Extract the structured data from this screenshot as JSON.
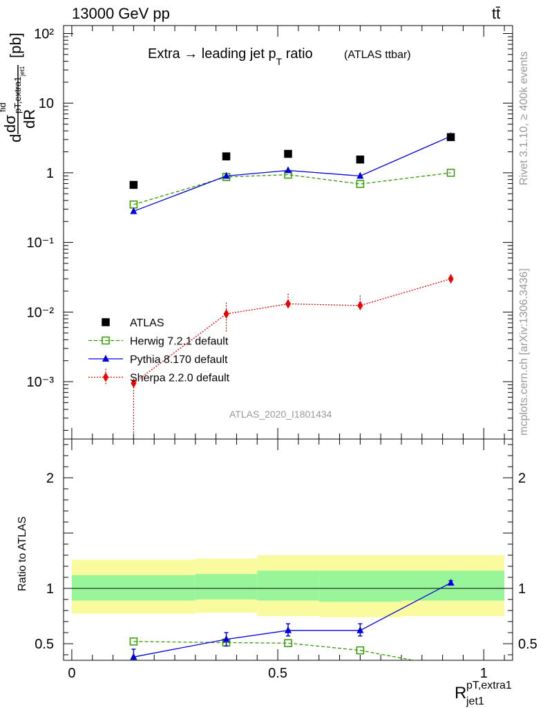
{
  "header": {
    "energy": "13000 GeV pp",
    "process": "tt̄"
  },
  "side_labels": {
    "rivet": "Rivet 3.1.10, ≥ 400k events",
    "mcplots": "mcplots.cern.ch [arXiv:1306.3436]"
  },
  "title": {
    "main": "Extra → leading jet p",
    "main_sub": "T",
    "main_tail": " ratio",
    "tag": "(ATLAS ttbar)"
  },
  "watermark": "ATLAS_2020_I1801434",
  "ylabel_top": {
    "d": "d",
    "dsig": "dσ",
    "fid": "fid",
    "sub": "pT,extra1",
    "subsub": "jet1",
    "dR": "dR",
    "unit": "[pb]"
  },
  "ylabel_bottom": "Ratio to ATLAS",
  "xlabel": {
    "R": "R",
    "sup": "pT,extra1",
    "sub": "jet1"
  },
  "colors": {
    "atlas": "#000000",
    "herwig": "#339900",
    "pythia": "#0000dd",
    "sherpa": "#ee0000",
    "band_inner": "#99f599",
    "band_outer": "#fafa9e"
  },
  "chart_data": [
    {
      "type": "scatter",
      "panel": "main",
      "scale": "log",
      "ylim": [
        0.00015,
        130
      ],
      "xlim": [
        -0.02,
        1.07
      ],
      "y_ticks": [
        "10²",
        "10",
        "1",
        "10⁻¹",
        "10⁻²",
        "10⁻³"
      ],
      "y_tick_values": [
        100,
        10,
        1,
        0.1,
        0.01,
        0.001
      ],
      "series": [
        {
          "name": "ATLAS",
          "x": [
            0.15,
            0.375,
            0.525,
            0.7,
            0.92
          ],
          "y": [
            0.67,
            1.72,
            1.87,
            1.55,
            3.25
          ]
        },
        {
          "name": "Herwig 7.2.1 default",
          "x": [
            0.15,
            0.375,
            0.525,
            0.7,
            0.92
          ],
          "y": [
            0.35,
            0.87,
            0.94,
            0.69,
            1.0
          ]
        },
        {
          "name": "Pythia 8.170 default",
          "x": [
            0.15,
            0.375,
            0.525,
            0.7,
            0.92
          ],
          "y": [
            0.28,
            0.9,
            1.08,
            0.9,
            3.35
          ]
        },
        {
          "name": "Sherpa 2.2.0 default",
          "x": [
            0.15,
            0.375,
            0.525,
            0.7,
            0.92
          ],
          "y": [
            0.00095,
            0.0094,
            0.0131,
            0.0124,
            0.03
          ],
          "err_lo": [
            0.00015,
            0.0052,
            0.0125,
            0.0114,
            0.027
          ],
          "err_hi": [
            0.0011,
            0.0137,
            0.0183,
            0.0173,
            0.035
          ]
        }
      ]
    },
    {
      "type": "line",
      "panel": "ratio",
      "ylim": [
        0.35,
        2.35
      ],
      "xlim": [
        -0.02,
        1.07
      ],
      "x_ticks": [
        "0",
        "0.5",
        "1"
      ],
      "x_tick_values": [
        0,
        0.5,
        1
      ],
      "y_ticks": [
        "2",
        "1",
        "0.5"
      ],
      "y_tick_values": [
        2,
        1,
        0.5
      ],
      "bands": [
        {
          "x0": 0.0,
          "x1": 0.3,
          "inner": [
            0.89,
            1.12
          ],
          "outer": [
            0.77,
            1.26
          ]
        },
        {
          "x0": 0.3,
          "x1": 0.45,
          "inner": [
            0.9,
            1.13
          ],
          "outer": [
            0.78,
            1.27
          ]
        },
        {
          "x0": 0.45,
          "x1": 0.6,
          "inner": [
            0.89,
            1.16
          ],
          "outer": [
            0.75,
            1.3
          ]
        },
        {
          "x0": 0.6,
          "x1": 0.8,
          "inner": [
            0.88,
            1.16
          ],
          "outer": [
            0.74,
            1.3
          ]
        },
        {
          "x0": 0.8,
          "x1": 1.05,
          "inner": [
            0.89,
            1.16
          ],
          "outer": [
            0.75,
            1.3
          ]
        }
      ],
      "series": [
        {
          "name": "Herwig 7.2.1 default",
          "x": [
            0.15,
            0.375,
            0.525,
            0.7,
            0.9
          ],
          "y": [
            0.52,
            0.51,
            0.505,
            0.44,
            0.3
          ]
        },
        {
          "name": "Pythia 8.170 default",
          "x": [
            0.15,
            0.375,
            0.525,
            0.7,
            0.92
          ],
          "y": [
            0.38,
            0.54,
            0.62,
            0.62,
            1.05
          ],
          "err_lo": [
            0.3,
            0.48,
            0.57,
            0.57,
            1.03
          ],
          "err_hi": [
            0.45,
            0.6,
            0.68,
            0.68,
            1.07
          ]
        }
      ]
    }
  ]
}
